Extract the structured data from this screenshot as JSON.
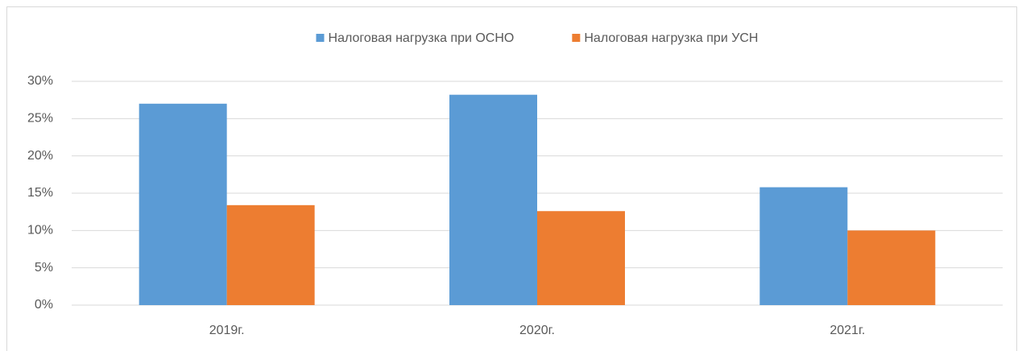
{
  "chart_data": {
    "type": "bar",
    "categories": [
      "2019г.",
      "2020г.",
      "2021г."
    ],
    "series": [
      {
        "name": "Налоговая нагрузка при ОСНО",
        "color": "#5b9bd5",
        "values": [
          27,
          28.2,
          15.8
        ]
      },
      {
        "name": "Налоговая нагрузка при УСН",
        "color": "#ed7d31",
        "values": [
          13.4,
          12.6,
          10
        ]
      }
    ],
    "ylim": [
      0,
      30
    ],
    "yticks": [
      {
        "value": 0,
        "label": "0%"
      },
      {
        "value": 5,
        "label": "5%"
      },
      {
        "value": 10,
        "label": "10%"
      },
      {
        "value": 15,
        "label": "15%"
      },
      {
        "value": 20,
        "label": "20%"
      },
      {
        "value": 25,
        "label": "25%"
      },
      {
        "value": 30,
        "label": "30%"
      }
    ],
    "grid": true,
    "legend": "top"
  }
}
